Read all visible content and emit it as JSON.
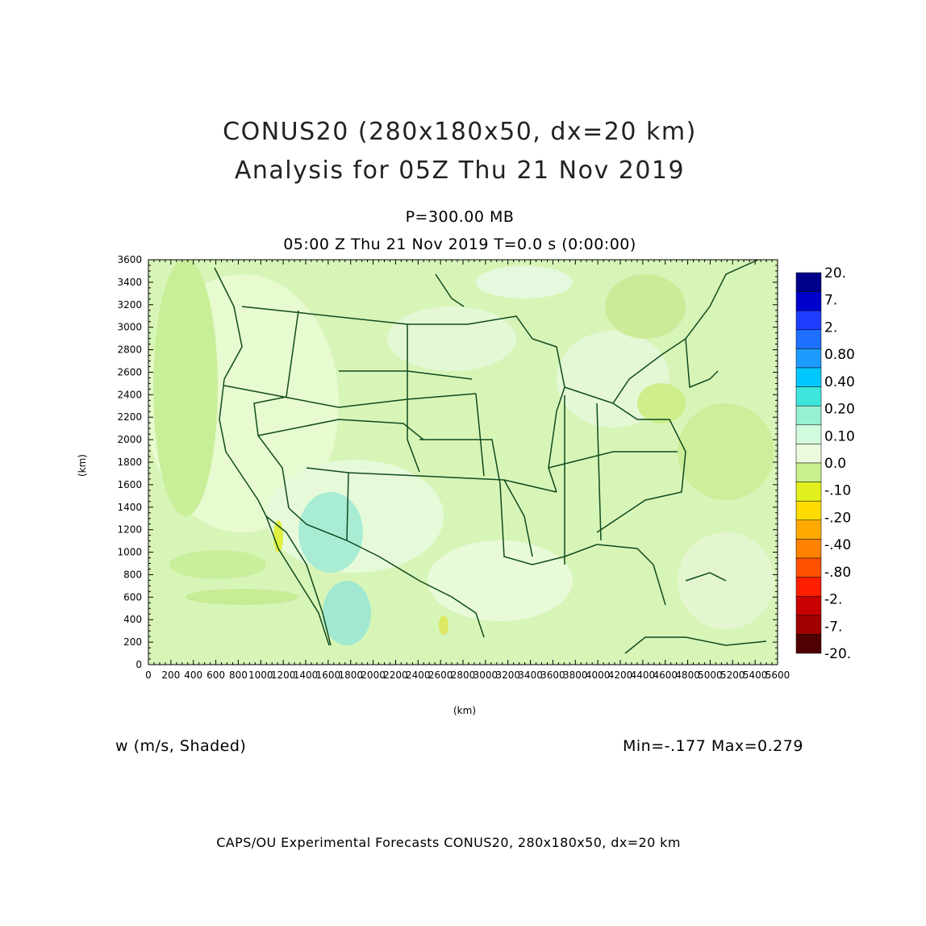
{
  "titles": {
    "line1": "CONUS20 (280x180x50, dx=20 km)",
    "line2": "Analysis for 05Z Thu 21 Nov 2019"
  },
  "level": "P=300.00 MB",
  "timeline": "05:00 Z Thu 21 Nov 2019    T=0.0 s (0:00:00)",
  "axes": {
    "x_unit": "(km)",
    "y_unit": "(km)",
    "x_ticks": [
      "0",
      "200",
      "400",
      "600",
      "800",
      "1000",
      "1200",
      "1400",
      "1600",
      "1800",
      "2000",
      "2200",
      "2400",
      "2600",
      "2800",
      "3000",
      "3200",
      "3400",
      "3600",
      "3800",
      "4000",
      "4200",
      "4400",
      "4600",
      "4800",
      "5000",
      "5200",
      "5400",
      "5600"
    ],
    "y_ticks": [
      "0",
      "200",
      "400",
      "600",
      "800",
      "1000",
      "1200",
      "1400",
      "1600",
      "1800",
      "2000",
      "2200",
      "2400",
      "2600",
      "2800",
      "3000",
      "3200",
      "3400",
      "3600"
    ]
  },
  "colorbar": {
    "labels": [
      "20.",
      "7.",
      "2.",
      "0.80",
      "0.40",
      "0.20",
      "0.10",
      "0.0",
      "-.10",
      "-.20",
      "-.40",
      "-.80",
      "-2.",
      "-7.",
      "-20."
    ],
    "colors": [
      "#00008b",
      "#0000cd",
      "#1e3cff",
      "#1e6eff",
      "#1e9bff",
      "#00c8ff",
      "#3ce6dc",
      "#96f0d2",
      "#d2fadc",
      "#ebfadc",
      "#c8f08c",
      "#e1f01e",
      "#ffdc00",
      "#ffaa00",
      "#ff8200",
      "#ff5000",
      "#ff1e00",
      "#c80000",
      "#a00000",
      "#500000"
    ]
  },
  "variable_label": "w (m/s, Shaded)",
  "minmax": "Min=-.177 Max=0.279",
  "credit": "CAPS/OU Experimental Forecasts  CONUS20, 280x180x50, dx=20 km"
}
